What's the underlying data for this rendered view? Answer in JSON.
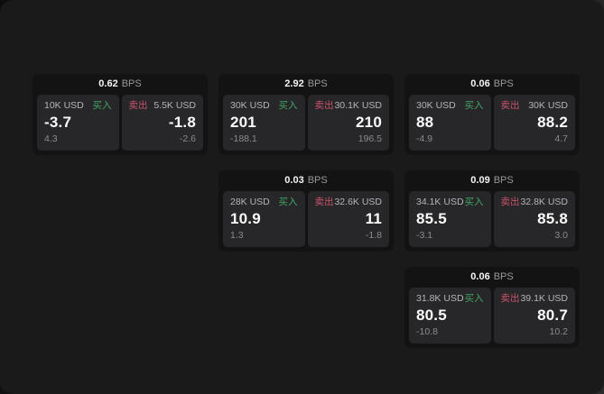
{
  "labels": {
    "bps_unit": "BPS",
    "buy": "买入",
    "sell": "卖出"
  },
  "colors": {
    "buy_accent": "#43a564",
    "sell_accent": "#c9536b",
    "panel_background": "#1a1a1b",
    "card_background": "#131314",
    "tile_background": "#272729",
    "primary_text": "#fafafa",
    "secondary_text": "#8b8b8c"
  },
  "cards": [
    {
      "row": 1,
      "col": 1,
      "bps": "0.62",
      "buy": {
        "amount": "10K USD",
        "price": "-3.7",
        "delta": "4.3"
      },
      "sell": {
        "amount": "5.5K USD",
        "price": "-1.8",
        "delta": "-2.6"
      }
    },
    {
      "row": 1,
      "col": 2,
      "bps": "2.92",
      "buy": {
        "amount": "30K USD",
        "price": "201",
        "delta": "-188.1"
      },
      "sell": {
        "amount": "30.1K USD",
        "price": "210",
        "delta": "196.5"
      }
    },
    {
      "row": 1,
      "col": 3,
      "bps": "0.06",
      "buy": {
        "amount": "30K USD",
        "price": "88",
        "delta": "-4.9"
      },
      "sell": {
        "amount": "30K USD",
        "price": "88.2",
        "delta": "4.7"
      }
    },
    {
      "row": 2,
      "col": 2,
      "bps": "0.03",
      "buy": {
        "amount": "28K USD",
        "price": "10.9",
        "delta": "1.3"
      },
      "sell": {
        "amount": "32.6K USD",
        "price": "11",
        "delta": "-1.8"
      }
    },
    {
      "row": 2,
      "col": 3,
      "bps": "0.09",
      "buy": {
        "amount": "34.1K USD",
        "price": "85.5",
        "delta": "-3.1"
      },
      "sell": {
        "amount": "32.8K USD",
        "price": "85.8",
        "delta": "3.0"
      }
    },
    {
      "row": 3,
      "col": 3,
      "bps": "0.06",
      "buy": {
        "amount": "31.8K USD",
        "price": "80.5",
        "delta": "-10.8"
      },
      "sell": {
        "amount": "39.1K USD",
        "price": "80.7",
        "delta": "10.2"
      }
    }
  ]
}
